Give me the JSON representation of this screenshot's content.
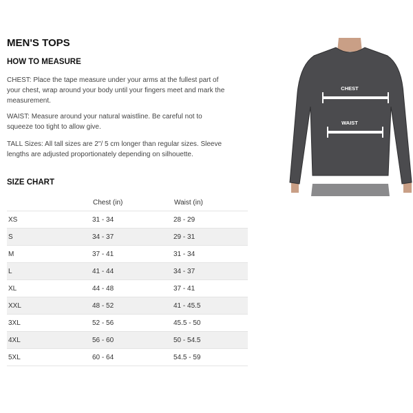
{
  "title": "MEN'S TOPS",
  "how_to": {
    "heading": "HOW TO MEASURE",
    "chest": "CHEST: Place the tape measure under your arms at the fullest part of your chest, wrap around your body until your fingers meet and mark the measurement.",
    "waist": "WAIST: Measure around your natural waistline. Be careful not to squeeze too tight to allow give.",
    "tall": "TALL Sizes: All tall sizes are 2\"/ 5 cm longer than regular sizes. Sleeve lengths are adjusted proportionately depending on silhouette."
  },
  "size_chart": {
    "heading": "SIZE CHART",
    "columns": [
      "",
      "Chest (in)",
      "Waist (in)"
    ],
    "rows": [
      [
        "XS",
        "31 - 34",
        "28 - 29"
      ],
      [
        "S",
        "34 - 37",
        "29 - 31"
      ],
      [
        "M",
        "37 - 41",
        "31 - 34"
      ],
      [
        "L",
        "41 - 44",
        "34 - 37"
      ],
      [
        "XL",
        "44 - 48",
        "37 - 41"
      ],
      [
        "XXL",
        "48 - 52",
        "41 - 45.5"
      ],
      [
        "3XL",
        "52 - 56",
        "45.5 - 50"
      ],
      [
        "4XL",
        "56 - 60",
        "50 - 54.5"
      ],
      [
        "5XL",
        "60 - 64",
        "54.5 - 59"
      ]
    ]
  },
  "figure": {
    "chest_label": "CHEST",
    "waist_label": "WAIST",
    "shirt_color": "#4b4b4e"
  }
}
